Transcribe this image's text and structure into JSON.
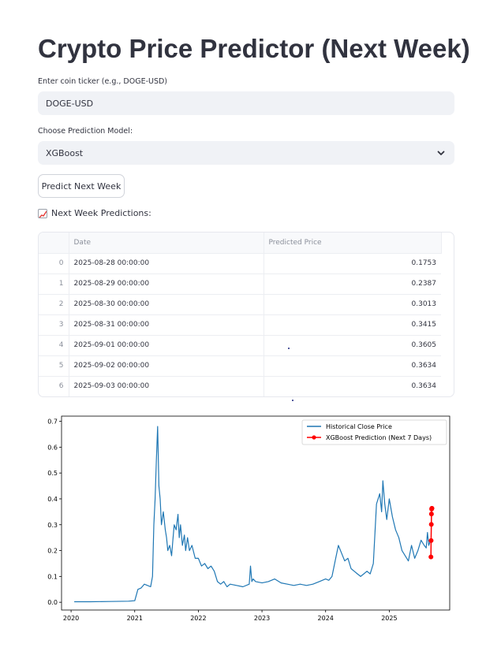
{
  "page": {
    "title": "Crypto Price Predictor (Next Week)"
  },
  "ticker": {
    "label": "Enter coin ticker (e.g., DOGE-USD)",
    "value": "DOGE-USD"
  },
  "model": {
    "label": "Choose Prediction Model:",
    "selected": "XGBoost"
  },
  "predict_button": "Predict Next Week",
  "predictions": {
    "heading": "Next Week Predictions:",
    "icon": "chart-increasing-icon",
    "columns": [
      "",
      "Date",
      "Predicted Price"
    ],
    "rows": [
      {
        "index": "0",
        "date": "2025-08-28 00:00:00",
        "price": "0.1753"
      },
      {
        "index": "1",
        "date": "2025-08-29 00:00:00",
        "price": "0.2387"
      },
      {
        "index": "2",
        "date": "2025-08-30 00:00:00",
        "price": "0.3013"
      },
      {
        "index": "3",
        "date": "2025-08-31 00:00:00",
        "price": "0.3415"
      },
      {
        "index": "4",
        "date": "2025-09-01 00:00:00",
        "price": "0.3605"
      },
      {
        "index": "5",
        "date": "2025-09-02 00:00:00",
        "price": "0.3634"
      },
      {
        "index": "6",
        "date": "2025-09-03 00:00:00",
        "price": "0.3634"
      }
    ]
  },
  "chart_data": {
    "type": "line",
    "title": "",
    "xlabel": "",
    "ylabel": "",
    "xlim": [
      2019.85,
      2025.95
    ],
    "ylim": [
      -0.03,
      0.72
    ],
    "x_ticks": [
      "2020",
      "2021",
      "2022",
      "2023",
      "2024",
      "2025"
    ],
    "y_ticks": [
      "0.0",
      "0.1",
      "0.2",
      "0.3",
      "0.4",
      "0.5",
      "0.6",
      "0.7"
    ],
    "grid": false,
    "legend": "top-right",
    "colors": {
      "history": "#1f77b4",
      "prediction": "#ff0000"
    },
    "series": [
      {
        "name": "Historical Close Price",
        "x": [
          2020.05,
          2020.3,
          2020.6,
          2020.9,
          2021.0,
          2021.05,
          2021.1,
          2021.15,
          2021.2,
          2021.25,
          2021.28,
          2021.3,
          2021.32,
          2021.34,
          2021.36,
          2021.38,
          2021.4,
          2021.42,
          2021.45,
          2021.48,
          2021.5,
          2021.52,
          2021.55,
          2021.58,
          2021.6,
          2021.62,
          2021.65,
          2021.68,
          2021.7,
          2021.72,
          2021.75,
          2021.78,
          2021.8,
          2021.83,
          2021.86,
          2021.9,
          2021.95,
          2022.0,
          2022.05,
          2022.1,
          2022.15,
          2022.2,
          2022.25,
          2022.3,
          2022.35,
          2022.4,
          2022.45,
          2022.5,
          2022.6,
          2022.7,
          2022.8,
          2022.82,
          2022.84,
          2022.86,
          2022.9,
          2023.0,
          2023.1,
          2023.2,
          2023.3,
          2023.4,
          2023.5,
          2023.6,
          2023.7,
          2023.8,
          2023.9,
          2024.0,
          2024.05,
          2024.1,
          2024.15,
          2024.2,
          2024.25,
          2024.3,
          2024.35,
          2024.4,
          2024.45,
          2024.5,
          2024.55,
          2024.6,
          2024.65,
          2024.7,
          2024.75,
          2024.8,
          2024.85,
          2024.88,
          2024.9,
          2024.93,
          2024.96,
          2025.0,
          2025.05,
          2025.1,
          2025.15,
          2025.2,
          2025.25,
          2025.3,
          2025.35,
          2025.4,
          2025.45,
          2025.5,
          2025.55,
          2025.58,
          2025.6,
          2025.62,
          2025.65
        ],
        "y": [
          0.002,
          0.002,
          0.003,
          0.004,
          0.006,
          0.05,
          0.055,
          0.07,
          0.065,
          0.06,
          0.1,
          0.3,
          0.4,
          0.55,
          0.68,
          0.45,
          0.4,
          0.3,
          0.35,
          0.28,
          0.25,
          0.2,
          0.22,
          0.18,
          0.24,
          0.3,
          0.28,
          0.34,
          0.25,
          0.3,
          0.22,
          0.26,
          0.2,
          0.25,
          0.2,
          0.22,
          0.17,
          0.17,
          0.14,
          0.15,
          0.13,
          0.14,
          0.12,
          0.08,
          0.07,
          0.08,
          0.06,
          0.07,
          0.065,
          0.06,
          0.07,
          0.14,
          0.08,
          0.09,
          0.08,
          0.075,
          0.08,
          0.09,
          0.075,
          0.07,
          0.065,
          0.07,
          0.065,
          0.07,
          0.08,
          0.09,
          0.085,
          0.1,
          0.16,
          0.22,
          0.19,
          0.16,
          0.17,
          0.13,
          0.12,
          0.11,
          0.1,
          0.11,
          0.12,
          0.11,
          0.15,
          0.38,
          0.42,
          0.35,
          0.47,
          0.38,
          0.32,
          0.4,
          0.33,
          0.28,
          0.25,
          0.2,
          0.18,
          0.16,
          0.22,
          0.17,
          0.2,
          0.24,
          0.22,
          0.21,
          0.27,
          0.22,
          0.24
        ]
      },
      {
        "name": "XGBoost Prediction (Next 7 Days)",
        "x": [
          2025.655,
          2025.658,
          2025.661,
          2025.663,
          2025.666,
          2025.669,
          2025.671
        ],
        "y": [
          0.1753,
          0.2387,
          0.3013,
          0.3415,
          0.3605,
          0.3634,
          0.3634
        ]
      }
    ]
  }
}
